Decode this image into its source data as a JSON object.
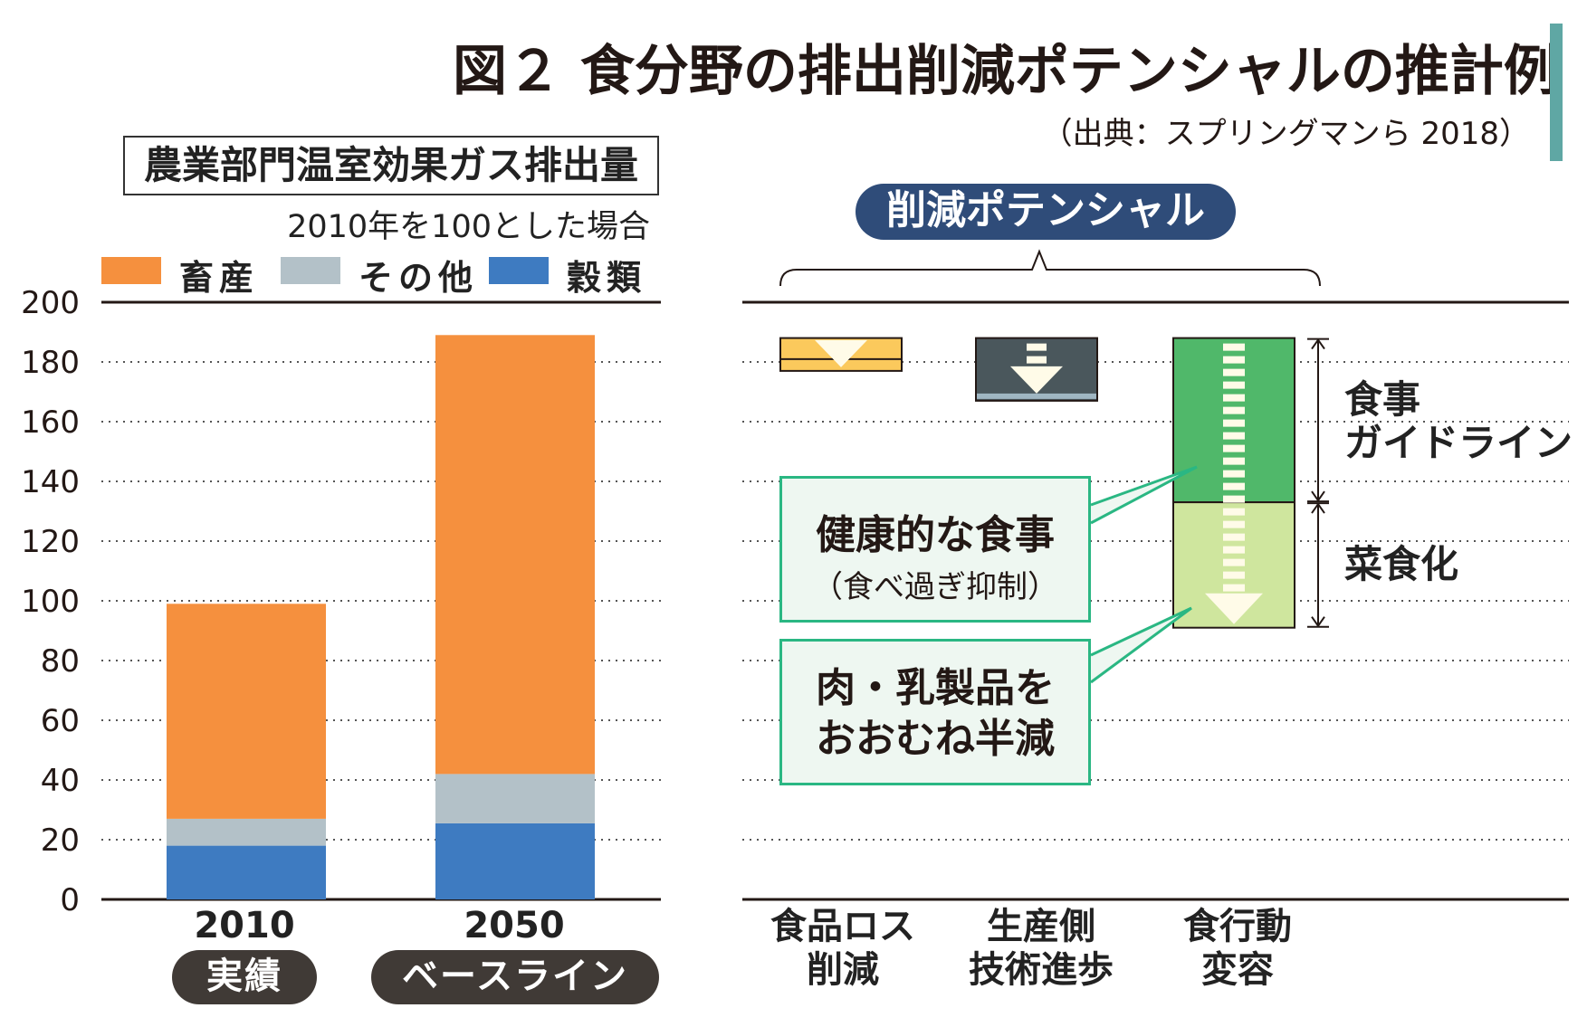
{
  "title": "図２ 食分野の排出削減ポテンシャルの推計例",
  "source": "（出典：スプリングマンら 2018）",
  "colors": {
    "livestock": "#f5903e",
    "other": "#b3c1c8",
    "grain": "#3e7bc1",
    "pill_dark": "#403a36",
    "pill_blue": "#2f4c79",
    "callout_border": "#2ab783",
    "accent_bar": "#5fa7a4"
  },
  "left_panel": {
    "box_title": "農業部門温室効果ガス排出量",
    "subtitle": "2010年を100とした場合",
    "legend": [
      "畜産",
      "その他",
      "穀類"
    ]
  },
  "chart_data": {
    "type": "bar",
    "stacked": true,
    "categories": [
      "2010",
      "2050"
    ],
    "category_tags": [
      "実績",
      "ベースライン"
    ],
    "series": [
      {
        "name": "穀類",
        "values": [
          18,
          25.5
        ]
      },
      {
        "name": "その他",
        "values": [
          9,
          16.5
        ]
      },
      {
        "name": "畜産",
        "values": [
          72,
          147
        ]
      }
    ],
    "ylim": [
      0,
      200
    ],
    "yticks": [
      "0",
      "20",
      "40",
      "60",
      "80",
      "100",
      "120",
      "140",
      "160",
      "180",
      "200"
    ],
    "grid": true
  },
  "right_panel": {
    "header": "削減ポテンシャル",
    "columns": [
      {
        "label_lines": [
          "食品ロス",
          "削減"
        ],
        "top": 188,
        "bottom": 177
      },
      {
        "label_lines": [
          "生産側",
          "技術進歩"
        ],
        "top": 188,
        "bottom": 167
      },
      {
        "label_lines": [
          "食行動",
          "変容"
        ],
        "top": 188,
        "bottom": 91
      }
    ],
    "diet_split": 133,
    "brackets": [
      "食事ガイドライン",
      "菜食化"
    ],
    "bracket_lines": [
      [
        "食事",
        "ガイドライン"
      ],
      [
        "菜食化"
      ]
    ],
    "callouts": [
      {
        "main": "健康的な食事",
        "sub": "（食べ過ぎ抑制）"
      },
      {
        "main_lines": [
          "肉・乳製品を",
          "おおむね半減"
        ]
      }
    ]
  }
}
